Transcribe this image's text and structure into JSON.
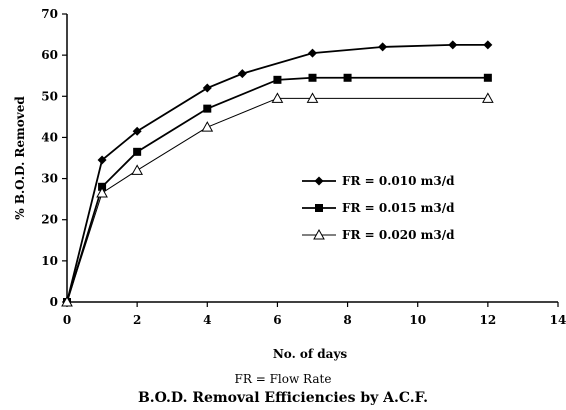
{
  "chart_data": {
    "type": "line",
    "title": "B.O.D. Removal Efficiencies by A.C.F.",
    "xlabel": "No. of days",
    "ylabel": "% B.O.D. Removed",
    "note": "FR = Flow Rate",
    "xlim": [
      0,
      14
    ],
    "ylim": [
      0,
      70
    ],
    "xticks": [
      0,
      2,
      4,
      6,
      8,
      10,
      12,
      14
    ],
    "yticks": [
      0,
      10,
      20,
      30,
      40,
      50,
      60,
      70
    ],
    "grid": false,
    "legend_position": "right",
    "series": [
      {
        "name": "FR = 0.010 m3/d",
        "marker": "diamond",
        "x": [
          0,
          1,
          2,
          4,
          5,
          7,
          9,
          11,
          12
        ],
        "y": [
          0,
          34.5,
          41.5,
          52,
          55.5,
          60.5,
          62,
          62.5,
          62.5
        ]
      },
      {
        "name": "FR = 0.015 m3/d",
        "marker": "square",
        "x": [
          0,
          1,
          2,
          4,
          6,
          7,
          8,
          12
        ],
        "y": [
          0,
          28,
          36.5,
          47,
          54,
          54.5,
          54.5,
          54.5
        ]
      },
      {
        "name": "FR = 0.020 m3/d",
        "marker": "triangle",
        "x": [
          0,
          1,
          2,
          4,
          6,
          7,
          12
        ],
        "y": [
          0,
          26.5,
          32,
          42.5,
          49.5,
          49.5,
          49.5
        ]
      }
    ]
  }
}
